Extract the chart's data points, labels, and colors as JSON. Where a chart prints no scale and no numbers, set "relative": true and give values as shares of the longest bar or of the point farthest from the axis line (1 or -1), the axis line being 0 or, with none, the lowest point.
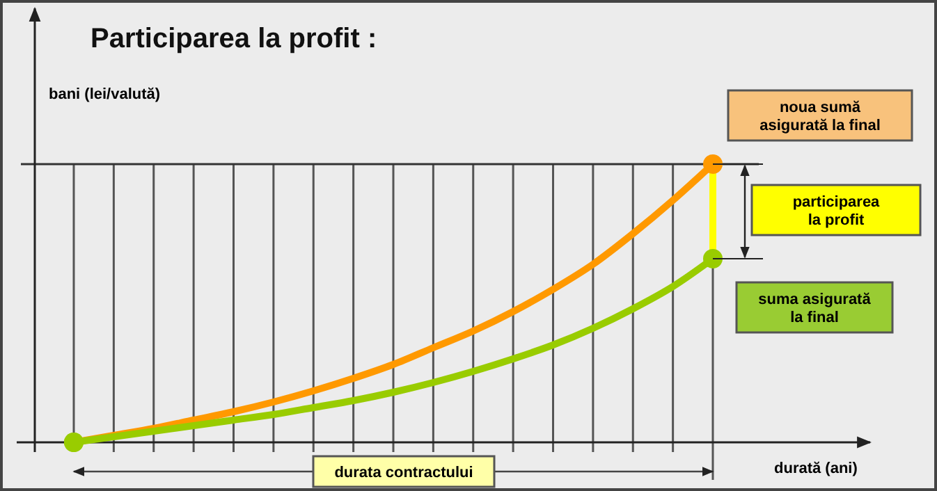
{
  "chart_data": {
    "type": "line",
    "title": "Participarea la profit :",
    "xlabel": "durată (ani)",
    "ylabel": "bani (lei/valută)",
    "relative": true,
    "grid": "x",
    "legend": "right",
    "categories": [
      null,
      null,
      null,
      null,
      null,
      null,
      null,
      null,
      null,
      null,
      null,
      null,
      null,
      null,
      null,
      null,
      null
    ],
    "series": [
      {
        "name": "noua sumă asigurată la final",
        "color": "#ff9900",
        "values": [
          0,
          0.025,
          0.05,
          0.08,
          0.11,
          0.145,
          0.185,
          0.23,
          0.28,
          0.34,
          0.4,
          0.47,
          0.55,
          0.64,
          0.75,
          0.87,
          1
        ]
      },
      {
        "name": "suma asigurată la final",
        "color": "#99cc00",
        "values": [
          0,
          0.02,
          0.04,
          0.06,
          0.08,
          0.1,
          0.125,
          0.15,
          0.18,
          0.215,
          0.255,
          0.3,
          0.35,
          0.41,
          0.48,
          0.56,
          0.66
        ]
      }
    ],
    "ref_lines": [
      {
        "axis": "y",
        "value": 1,
        "color": "#333333"
      }
    ],
    "annotations": [
      "participarea la profit",
      "durata contractului"
    ]
  }
}
